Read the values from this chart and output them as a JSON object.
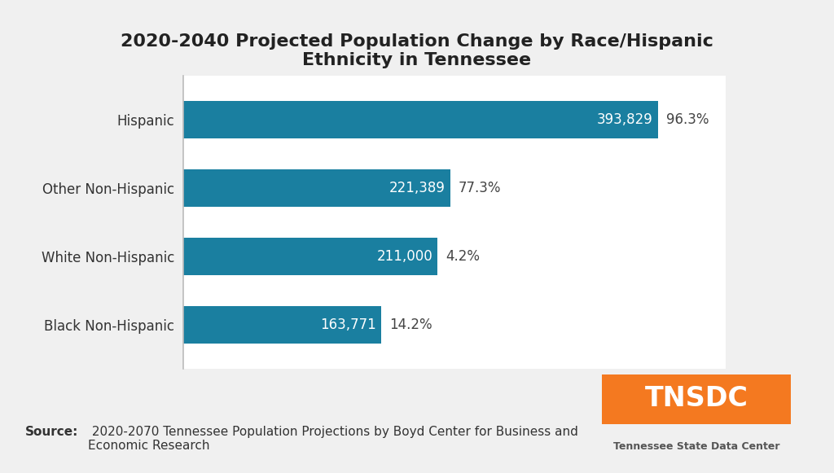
{
  "title": "2020-2040 Projected Population Change by Race/Hispanic\nEthnicity in Tennessee",
  "categories": [
    "Black Non-Hispanic",
    "White Non-Hispanic",
    "Other Non-Hispanic",
    "Hispanic"
  ],
  "values": [
    163771,
    211000,
    221389,
    393829
  ],
  "bar_labels": [
    "163,771",
    "211,000",
    "221,389",
    "393,829"
  ],
  "pct_labels": [
    "14.2%",
    "4.2%",
    "77.3%",
    "96.3%"
  ],
  "bar_color": "#1a7fa0",
  "background_color": "#ffffff",
  "outer_background": "#f0f0f0",
  "source_bold": "Source:",
  "source_text": " 2020-2070 Tennessee Population Projections by Boyd Center for Business and\nEconomic Research",
  "tnsdc_text": "TNSDC",
  "tnsdc_sub": "Tennessee State Data Center",
  "tnsdc_bg": "#F47920",
  "xlim": [
    0,
    450000
  ],
  "title_fontsize": 16,
  "label_fontsize": 12,
  "tick_fontsize": 12,
  "source_fontsize": 11,
  "bar_height": 0.55
}
